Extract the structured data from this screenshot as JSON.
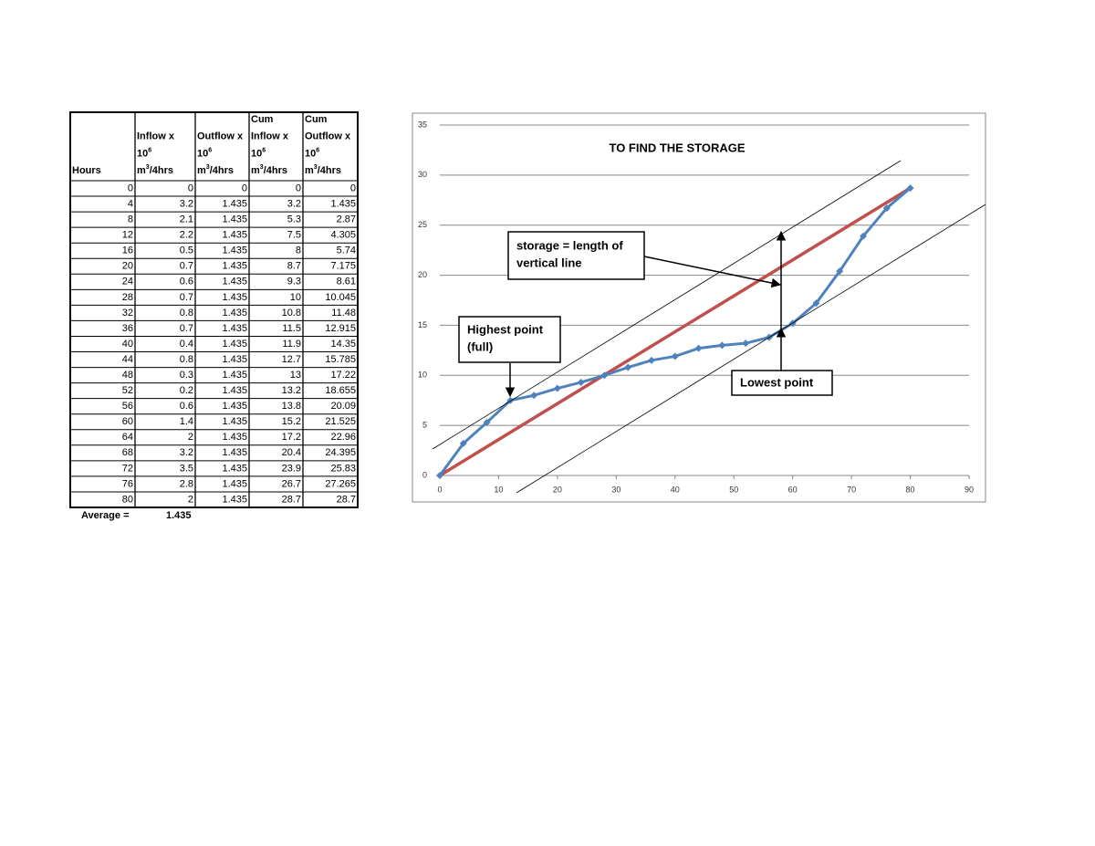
{
  "table": {
    "header": [
      [
        [
          "Hours"
        ]
      ],
      [
        [
          "Inflow x"
        ],
        [
          "10",
          "6"
        ],
        [
          "m",
          "3",
          "/4hrs"
        ]
      ],
      [
        [
          "Outflow x"
        ],
        [
          "10",
          "6"
        ],
        [
          "m",
          "3",
          "/4hrs"
        ]
      ],
      [
        [
          "Cum"
        ],
        [
          "Inflow x"
        ],
        [
          "10",
          "6"
        ],
        [
          "m",
          "3",
          "/4hrs"
        ]
      ],
      [
        [
          "Cum"
        ],
        [
          "Outflow x"
        ],
        [
          "10",
          "6"
        ],
        [
          "m",
          "3",
          "/4hrs"
        ]
      ]
    ],
    "rows": [
      [
        0,
        0,
        0,
        0,
        0
      ],
      [
        4,
        3.2,
        1.435,
        3.2,
        1.435
      ],
      [
        8,
        2.1,
        1.435,
        5.3,
        2.87
      ],
      [
        12,
        2.2,
        1.435,
        7.5,
        4.305
      ],
      [
        16,
        0.5,
        1.435,
        8,
        5.74
      ],
      [
        20,
        0.7,
        1.435,
        8.7,
        7.175
      ],
      [
        24,
        0.6,
        1.435,
        9.3,
        8.61
      ],
      [
        28,
        0.7,
        1.435,
        10,
        10.045
      ],
      [
        32,
        0.8,
        1.435,
        10.8,
        11.48
      ],
      [
        36,
        0.7,
        1.435,
        11.5,
        12.915
      ],
      [
        40,
        0.4,
        1.435,
        11.9,
        14.35
      ],
      [
        44,
        0.8,
        1.435,
        12.7,
        15.785
      ],
      [
        48,
        0.3,
        1.435,
        13,
        17.22
      ],
      [
        52,
        0.2,
        1.435,
        13.2,
        18.655
      ],
      [
        56,
        0.6,
        1.435,
        13.8,
        20.09
      ],
      [
        60,
        1.4,
        1.435,
        15.2,
        21.525
      ],
      [
        64,
        2,
        1.435,
        17.2,
        22.96
      ],
      [
        68,
        3.2,
        1.435,
        20.4,
        24.395
      ],
      [
        72,
        3.5,
        1.435,
        23.9,
        25.83
      ],
      [
        76,
        2.8,
        1.435,
        26.7,
        27.265
      ],
      [
        80,
        2,
        1.435,
        28.7,
        28.7
      ]
    ],
    "footer": [
      "Average =",
      1.435
    ]
  },
  "chart_data": {
    "type": "line",
    "title": "TO FIND THE STORAGE",
    "x": [
      0,
      4,
      8,
      12,
      16,
      20,
      24,
      28,
      32,
      36,
      40,
      44,
      48,
      52,
      56,
      60,
      64,
      68,
      72,
      76,
      80
    ],
    "series": [
      {
        "color": "#4f81bd",
        "markers": true,
        "values": [
          0,
          3.2,
          5.3,
          7.5,
          8,
          8.7,
          9.3,
          10,
          10.8,
          11.5,
          11.9,
          12.7,
          13,
          13.2,
          13.8,
          15.2,
          17.2,
          20.4,
          23.9,
          26.7,
          28.7
        ]
      },
      {
        "color": "#c0504d",
        "markers": false,
        "values": [
          0,
          1.435,
          2.87,
          4.305,
          5.74,
          7.175,
          8.61,
          10.045,
          11.48,
          12.915,
          14.35,
          15.785,
          17.22,
          18.655,
          20.09,
          21.525,
          22.96,
          24.395,
          25.83,
          27.265,
          28.7
        ]
      }
    ],
    "xlim": [
      0,
      90
    ],
    "xticks": [
      0,
      10,
      20,
      30,
      40,
      50,
      60,
      70,
      80,
      90
    ],
    "ylim": [
      0,
      35
    ],
    "yticks": [
      0,
      5,
      10,
      15,
      20,
      25,
      30,
      35
    ],
    "grid": true,
    "annotations": {
      "storage": [
        "storage = length of",
        "vertical line"
      ],
      "highest": [
        "Highest point",
        "(full)"
      ],
      "lowest": "Lowest point"
    }
  }
}
